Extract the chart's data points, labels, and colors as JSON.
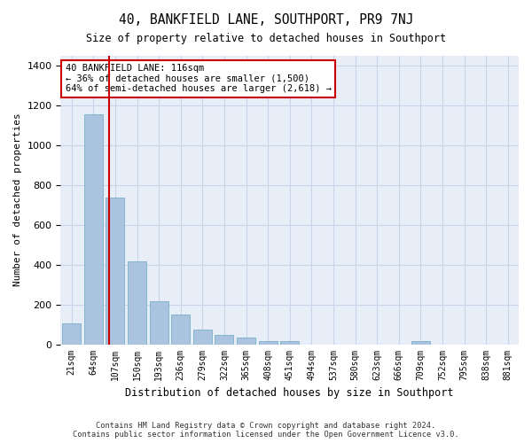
{
  "title": "40, BANKFIELD LANE, SOUTHPORT, PR9 7NJ",
  "subtitle": "Size of property relative to detached houses in Southport",
  "xlabel": "Distribution of detached houses by size in Southport",
  "ylabel": "Number of detached properties",
  "footer_line1": "Contains HM Land Registry data © Crown copyright and database right 2024.",
  "footer_line2": "Contains public sector information licensed under the Open Government Licence v3.0.",
  "annotation_line1": "40 BANKFIELD LANE: 116sqm",
  "annotation_line2": "← 36% of detached houses are smaller (1,500)",
  "annotation_line3": "64% of semi-detached houses are larger (2,618) →",
  "bar_color": "#aac4e0",
  "bar_edge_color": "#7aafc8",
  "grid_color": "#c8d4e8",
  "highlight_line_color": "#cc0000",
  "annotation_box_color": "#cc0000",
  "bar_labels": [
    "21sqm",
    "64sqm",
    "107sqm",
    "150sqm",
    "193sqm",
    "236sqm",
    "279sqm",
    "322sqm",
    "365sqm",
    "408sqm",
    "451sqm",
    "494sqm",
    "537sqm",
    "580sqm",
    "623sqm",
    "666sqm",
    "709sqm",
    "752sqm",
    "795sqm",
    "838sqm",
    "881sqm"
  ],
  "bar_counts": [
    105,
    1155,
    735,
    415,
    218,
    148,
    72,
    48,
    32,
    18,
    15,
    0,
    0,
    0,
    0,
    0,
    18,
    0,
    0,
    0,
    0
  ],
  "ylim": [
    0,
    1450
  ],
  "yticks": [
    0,
    200,
    400,
    600,
    800,
    1000,
    1200,
    1400
  ],
  "highlight_bar_index": 2,
  "bg_color": "#e8eef8"
}
